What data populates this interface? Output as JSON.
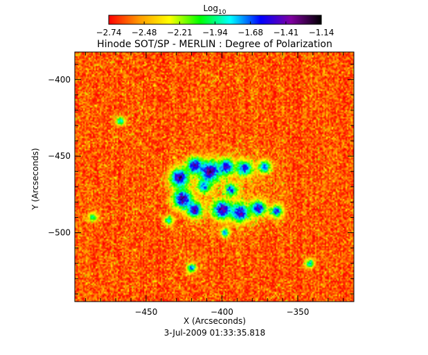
{
  "chart_data": {
    "type": "heatmap",
    "title": "Hinode SOT/SP - MERLIN : Degree of Polarization",
    "xlabel": "X (Arcseconds)",
    "ylabel": "Y (Arcseconds)",
    "footer": "3-Jul-2009 01:33:35.818",
    "xlim": [
      -497,
      -313
    ],
    "ylim": [
      -545,
      -382
    ],
    "x_ticks": [
      -450,
      -400,
      -350
    ],
    "y_ticks": [
      -400,
      -450,
      -500
    ],
    "colorbar": {
      "label_base": "Log",
      "label_sub": "10",
      "ticks": [
        "-2.74",
        "-2.48",
        "-2.21",
        "-1.94",
        "-1.68",
        "-1.41",
        "-1.14"
      ],
      "range": [
        -2.74,
        -1.14
      ],
      "colors": [
        "#ff0000",
        "#ff9900",
        "#ffff00",
        "#00ff00",
        "#00ffff",
        "#0000ff",
        "#8000a0",
        "#000000"
      ]
    },
    "features": [
      {
        "x": -428,
        "y": -464,
        "r": 6,
        "v": -1.2
      },
      {
        "x": -418,
        "y": -456,
        "r": 5,
        "v": -1.3
      },
      {
        "x": -408,
        "y": -460,
        "r": 7,
        "v": -1.25
      },
      {
        "x": -397,
        "y": -457,
        "r": 5,
        "v": -1.35
      },
      {
        "x": -385,
        "y": -458,
        "r": 5,
        "v": -1.4
      },
      {
        "x": -372,
        "y": -457,
        "r": 4,
        "v": -1.5
      },
      {
        "x": -426,
        "y": -478,
        "r": 6,
        "v": -1.2
      },
      {
        "x": -418,
        "y": -485,
        "r": 5,
        "v": -1.3
      },
      {
        "x": -400,
        "y": -485,
        "r": 6,
        "v": -1.25
      },
      {
        "x": -388,
        "y": -487,
        "r": 6,
        "v": -1.3
      },
      {
        "x": -376,
        "y": -484,
        "r": 5,
        "v": -1.35
      },
      {
        "x": -364,
        "y": -486,
        "r": 4,
        "v": -1.45
      },
      {
        "x": -394,
        "y": -472,
        "r": 4,
        "v": -1.55
      },
      {
        "x": -412,
        "y": -470,
        "r": 4,
        "v": -1.6
      },
      {
        "x": -420,
        "y": -523,
        "r": 3,
        "v": -1.5
      },
      {
        "x": -467,
        "y": -427,
        "r": 3,
        "v": -1.7
      },
      {
        "x": -435,
        "y": -492,
        "r": 3,
        "v": -1.7
      },
      {
        "x": -398,
        "y": -500,
        "r": 3,
        "v": -1.6
      },
      {
        "x": -342,
        "y": -520,
        "r": 3,
        "v": -1.7
      },
      {
        "x": -485,
        "y": -490,
        "r": 3,
        "v": -1.8
      }
    ]
  }
}
